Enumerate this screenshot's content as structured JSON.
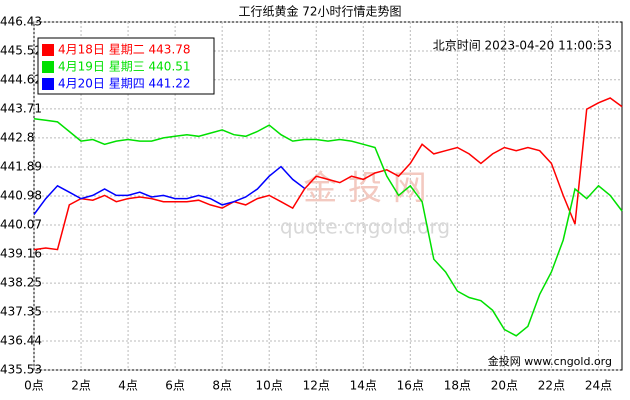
{
  "chart_data": {
    "type": "line",
    "title": "工行纸黄金 72小时行情走势图",
    "annotations": [
      "北京时间 2023-04-20 11:00:53",
      "金 投 网",
      "quote.cngold.org",
      "金投网 www.cngold.org"
    ],
    "x": [
      0,
      0.5,
      1,
      1.5,
      2,
      2.5,
      3,
      3.5,
      4,
      4.5,
      5,
      5.5,
      6,
      6.5,
      7,
      7.5,
      8,
      8.5,
      9,
      9.5,
      10,
      10.5,
      11,
      11.5,
      12,
      12.5,
      13,
      13.5,
      14,
      14.5,
      15,
      15.5,
      16,
      16.5,
      17,
      17.5,
      18,
      18.5,
      19,
      19.5,
      20,
      20.5,
      21,
      21.5,
      22,
      22.5,
      23,
      23.5,
      24,
      24.5,
      25
    ],
    "series": [
      {
        "name": "4月18日 星期二 443.78",
        "color": "#ff0000",
        "values": [
          439.3,
          439.35,
          439.3,
          440.7,
          440.9,
          440.85,
          441.0,
          440.8,
          440.9,
          440.95,
          440.9,
          440.8,
          440.8,
          440.8,
          440.85,
          440.7,
          440.6,
          440.8,
          440.7,
          440.9,
          441.0,
          440.8,
          440.6,
          441.2,
          441.6,
          441.5,
          441.4,
          441.6,
          441.5,
          441.7,
          441.8,
          441.6,
          442.0,
          442.6,
          442.3,
          442.4,
          442.5,
          442.3,
          442.0,
          442.3,
          442.5,
          442.4,
          442.5,
          442.4,
          442.0,
          441.0,
          440.1,
          443.7,
          443.9,
          444.05,
          443.78
        ]
      },
      {
        "name": "4月19日 星期三 440.51",
        "color": "#00e000",
        "values": [
          443.4,
          443.35,
          443.3,
          443.0,
          442.7,
          442.75,
          442.6,
          442.7,
          442.75,
          442.7,
          442.7,
          442.8,
          442.85,
          442.9,
          442.85,
          442.95,
          443.05,
          442.9,
          442.85,
          443.0,
          443.2,
          442.9,
          442.7,
          442.75,
          442.75,
          442.7,
          442.75,
          442.7,
          442.6,
          442.5,
          441.6,
          441.0,
          441.3,
          440.8,
          439.0,
          438.6,
          438.0,
          437.8,
          437.7,
          437.4,
          436.8,
          436.6,
          436.9,
          437.9,
          438.6,
          439.6,
          441.2,
          440.9,
          441.3,
          441.0,
          440.51
        ]
      },
      {
        "name": "4月20日 星期四 441.22",
        "color": "#0000ff",
        "values": [
          440.4,
          440.9,
          441.3,
          441.1,
          440.9,
          441.0,
          441.2,
          441.0,
          441.0,
          441.1,
          440.95,
          441.0,
          440.9,
          440.9,
          441.0,
          440.9,
          440.7,
          440.8,
          440.95,
          441.2,
          441.6,
          441.9,
          441.5,
          441.22,
          null,
          null,
          null,
          null,
          null,
          null,
          null,
          null,
          null,
          null,
          null,
          null,
          null,
          null,
          null,
          null,
          null,
          null,
          null,
          null,
          null,
          null,
          null,
          null,
          null,
          null,
          null
        ]
      }
    ],
    "xlim": [
      0,
      25
    ],
    "xticks": [
      {
        "value": 0,
        "label": "0点"
      },
      {
        "value": 2,
        "label": "2点"
      },
      {
        "value": 4,
        "label": "4点"
      },
      {
        "value": 6,
        "label": "6点"
      },
      {
        "value": 8,
        "label": "8点"
      },
      {
        "value": 10,
        "label": "10点"
      },
      {
        "value": 12,
        "label": "12点"
      },
      {
        "value": 14,
        "label": "14点"
      },
      {
        "value": 16,
        "label": "16点"
      },
      {
        "value": 18,
        "label": "18点"
      },
      {
        "value": 20,
        "label": "20点"
      },
      {
        "value": 22,
        "label": "22点"
      },
      {
        "value": 24,
        "label": "24点"
      }
    ],
    "ylim": [
      435.53,
      446.43
    ],
    "yticks": [
      446.43,
      445.52,
      444.62,
      443.71,
      442.8,
      441.89,
      440.98,
      440.07,
      439.16,
      438.25,
      437.35,
      436.44,
      435.53
    ],
    "grid": true,
    "legend": "top-left"
  }
}
